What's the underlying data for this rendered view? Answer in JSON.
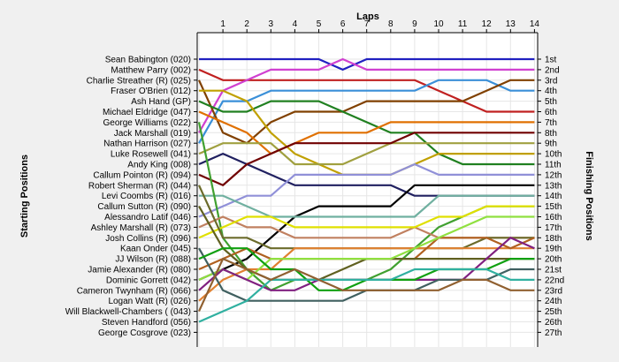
{
  "chart_data": {
    "type": "line",
    "title": "Laps",
    "ylabel_left": "Starting Positions",
    "ylabel_right": "Finishing Positions",
    "laps": [
      0,
      1,
      2,
      3,
      4,
      5,
      6,
      7,
      8,
      9,
      10,
      11,
      12,
      13,
      14
    ],
    "lap_ticks": [
      "1",
      "2",
      "3",
      "4",
      "5",
      "6",
      "7",
      "8",
      "9",
      "10",
      "11",
      "12",
      "13",
      "14"
    ],
    "grid": true,
    "drivers": [
      "Sean Babington (020)",
      "Matthew Parry (002)",
      "Charlie Streather (R) (025)",
      "Fraser O'Brien (012)",
      "Ash Hand (GP)",
      "Michael Eldridge (047)",
      "George Williams (022)",
      "Jack Marshall (019)",
      "Nathan Harrison (027)",
      "Luke Rosewell (041)",
      "Andy King (008)",
      "Callum Pointon  (R) (094)",
      "Robert Sherman (R) (044)",
      "Levi Coombs  (R) (016)",
      "Callum Sutton  (R) (090)",
      "Alessandro Latif (046)",
      "Ashley Marshall (R) (073)",
      "Josh Collins (R) (096)",
      "Kaan Onder (045)",
      "JJ Wilson  (R) (088)",
      "Jamie Alexander (R) (080)",
      "Dominic Gorrett (042)",
      "Cameron Twynham (R) (066)",
      "Logan Watt (R) (026)",
      "Will Blackwell-Chambers ( (043)",
      "Steven Handford (056)",
      "George Cosgrove (023)"
    ],
    "finishing_labels": [
      "1st",
      "2nd",
      "3rd",
      "4th",
      "5th",
      "6th",
      "7th",
      "8th",
      "9th",
      "10th",
      "11th",
      "12th",
      "13th",
      "14th",
      "15th",
      "16th",
      "17th",
      "18th",
      "19th",
      "20th",
      "21st",
      "22nd",
      "23rd",
      "24th",
      "25th",
      "26th",
      "27th"
    ],
    "series": [
      {
        "color": "#2020c0",
        "positions": [
          1,
          1,
          1,
          1,
          1,
          1,
          2,
          1,
          1,
          1,
          1,
          1,
          1,
          1,
          1
        ]
      },
      {
        "color": "#c02020",
        "positions": [
          2,
          3,
          3,
          3,
          3,
          3,
          3,
          3,
          3,
          3,
          4,
          5,
          6,
          6,
          6
        ]
      },
      {
        "color": "#d040d0",
        "positions": [
          8,
          4,
          3,
          2,
          2,
          2,
          1,
          2,
          2,
          2,
          2,
          2,
          2,
          2,
          2
        ]
      },
      {
        "color": "#3a8fd8",
        "positions": [
          9,
          5,
          5,
          4,
          4,
          4,
          4,
          4,
          4,
          4,
          3,
          3,
          3,
          4,
          4
        ]
      },
      {
        "color": "#804000",
        "positions": [
          3,
          8,
          9,
          7,
          6,
          6,
          6,
          5,
          5,
          5,
          5,
          5,
          4,
          3,
          3
        ]
      },
      {
        "color": "#208020",
        "positions": [
          5,
          6,
          6,
          5,
          5,
          5,
          6,
          7,
          8,
          8,
          10,
          11,
          11,
          11,
          11
        ]
      },
      {
        "color": "#c0a000",
        "positions": [
          4,
          4,
          5,
          8,
          10,
          11,
          12,
          12,
          12,
          11,
          10,
          10,
          10,
          10,
          10
        ]
      },
      {
        "color": "#e07000",
        "positions": [
          6,
          7,
          8,
          10,
          9,
          8,
          8,
          8,
          7,
          7,
          7,
          7,
          7,
          7,
          7
        ]
      },
      {
        "color": "#a0a040",
        "positions": [
          10,
          9,
          9,
          9,
          11,
          11,
          11,
          10,
          9,
          9,
          9,
          9,
          9,
          9,
          9
        ]
      },
      {
        "color": "#202060",
        "positions": [
          11,
          10,
          11,
          12,
          13,
          13,
          13,
          13,
          13,
          14,
          14,
          14,
          14,
          14,
          14
        ]
      },
      {
        "color": "#9090d8",
        "positions": [
          16,
          15,
          14,
          14,
          12,
          12,
          12,
          12,
          12,
          11,
          12,
          12,
          12,
          12,
          12
        ]
      },
      {
        "color": "#700000",
        "positions": [
          12,
          13,
          11,
          10,
          9,
          9,
          9,
          9,
          9,
          8,
          8,
          8,
          8,
          8,
          8
        ]
      },
      {
        "color": "#000000",
        "positions": [
          22,
          21,
          20,
          18,
          16,
          15,
          15,
          15,
          15,
          13,
          13,
          13,
          13,
          13,
          13
        ]
      },
      {
        "color": "#70b0a0",
        "positions": [
          14,
          14,
          15,
          16,
          16,
          16,
          16,
          16,
          16,
          16,
          14,
          14,
          14,
          14,
          14
        ]
      },
      {
        "color": "#40a030",
        "positions": [
          7,
          18,
          21,
          23,
          22,
          22,
          22,
          22,
          21,
          19,
          17,
          16,
          15,
          15,
          15
        ]
      },
      {
        "color": "#c08060",
        "positions": [
          17,
          16,
          17,
          17,
          18,
          18,
          18,
          18,
          18,
          17,
          18,
          18,
          18,
          18,
          18
        ]
      },
      {
        "color": "#e0e000",
        "positions": [
          18,
          17,
          16,
          16,
          17,
          17,
          17,
          17,
          17,
          17,
          16,
          16,
          15,
          15,
          15
        ]
      },
      {
        "color": "#6b6b2b",
        "positions": [
          13,
          18,
          18,
          19,
          19,
          19,
          19,
          19,
          19,
          19,
          19,
          19,
          18,
          18,
          18
        ]
      },
      {
        "color": "#e08030",
        "positions": [
          24,
          22,
          21,
          21,
          19,
          19,
          19,
          19,
          19,
          19,
          19,
          19,
          19,
          19,
          19
        ]
      },
      {
        "color": "#b06020",
        "positions": [
          21,
          20,
          19,
          20,
          20,
          20,
          20,
          20,
          20,
          20,
          18,
          18,
          18,
          19,
          18
        ]
      },
      {
        "color": "#606020",
        "positions": [
          15,
          19,
          21,
          22,
          22,
          22,
          21,
          20,
          20,
          20,
          20,
          20,
          20,
          20,
          20
        ]
      },
      {
        "color": "#90e040",
        "positions": [
          22,
          21,
          22,
          20,
          20,
          20,
          20,
          20,
          20,
          19,
          18,
          17,
          16,
          16,
          16
        ]
      },
      {
        "color": "#802080",
        "positions": [
          23,
          21,
          22,
          23,
          23,
          22,
          22,
          22,
          22,
          22,
          22,
          22,
          20,
          18,
          19
        ]
      },
      {
        "color": "#406060",
        "positions": [
          19,
          23,
          24,
          24,
          24,
          24,
          24,
          23,
          23,
          23,
          22,
          22,
          22,
          21,
          21
        ]
      },
      {
        "color": "#10a010",
        "positions": [
          20,
          19,
          19,
          21,
          21,
          23,
          23,
          22,
          22,
          22,
          21,
          21,
          21,
          20,
          20
        ]
      },
      {
        "color": "#30b0a0",
        "positions": [
          26,
          25,
          24,
          22,
          22,
          22,
          22,
          22,
          22,
          21,
          21,
          21,
          21,
          22,
          22
        ]
      },
      {
        "color": "#906030",
        "positions": [
          25,
          20,
          21,
          22,
          21,
          22,
          23,
          23,
          23,
          23,
          23,
          22,
          22,
          23,
          23
        ]
      }
    ]
  }
}
